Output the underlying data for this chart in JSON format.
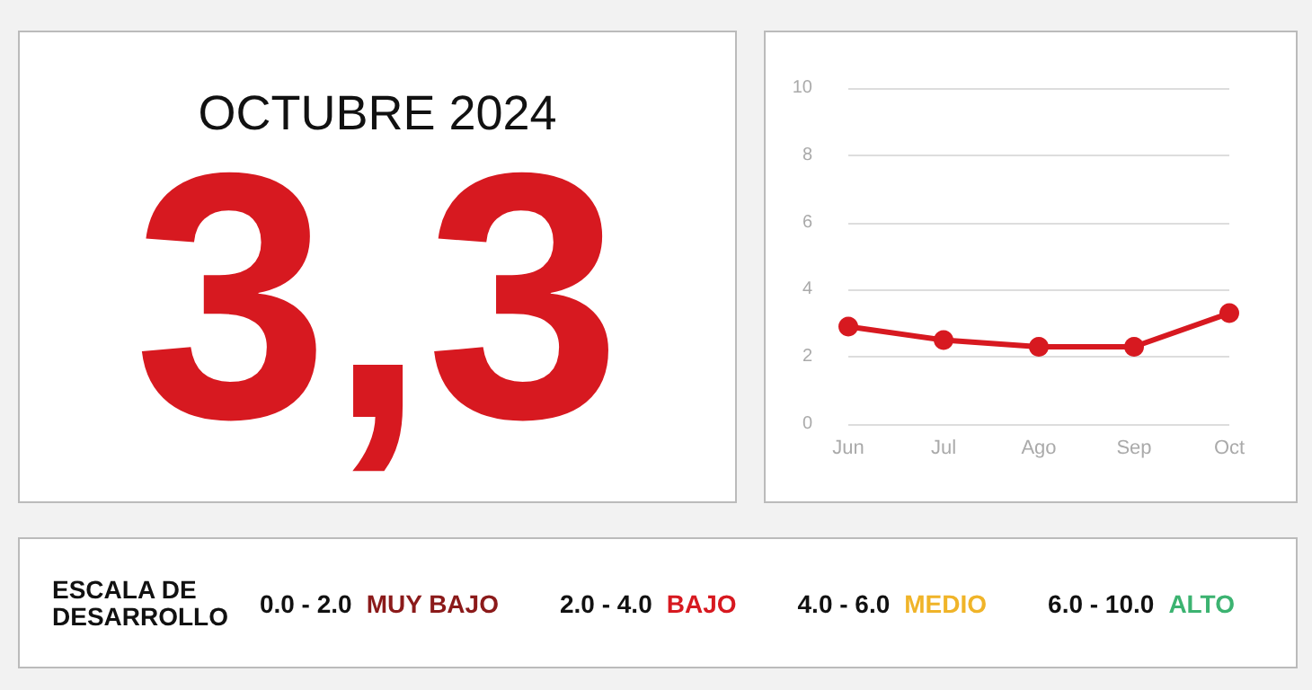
{
  "chart_data": [
    {
      "type": "other",
      "title": "OCTUBRE 2024",
      "annotations": [
        "3,3"
      ],
      "color": "#d71920"
    },
    {
      "type": "line",
      "categories": [
        "Jun",
        "Jul",
        "Ago",
        "Sep",
        "Oct"
      ],
      "series": [
        {
          "color": "#d71920",
          "values": [
            2.9,
            2.5,
            2.3,
            2.3,
            3.3
          ]
        }
      ],
      "ylim": [
        0,
        10
      ],
      "yticks": [
        0,
        2,
        4,
        6,
        8,
        10
      ],
      "grid": "y",
      "marker": "circle",
      "line_style": "solid"
    },
    {
      "type": "other",
      "title": "ESCALA DE DESARROLLO",
      "annotations": [
        "0.0 - 2.0",
        "MUY BAJO",
        "2.0 - 4.0",
        "BAJO",
        "4.0 - 6.0",
        "MEDIO",
        "6.0 - 10.0",
        "ALTO"
      ],
      "colors": [
        "#111111",
        "#8b1a1a",
        "#111111",
        "#d71920",
        "#111111",
        "#f0b429",
        "#111111",
        "#3cb371"
      ]
    }
  ]
}
